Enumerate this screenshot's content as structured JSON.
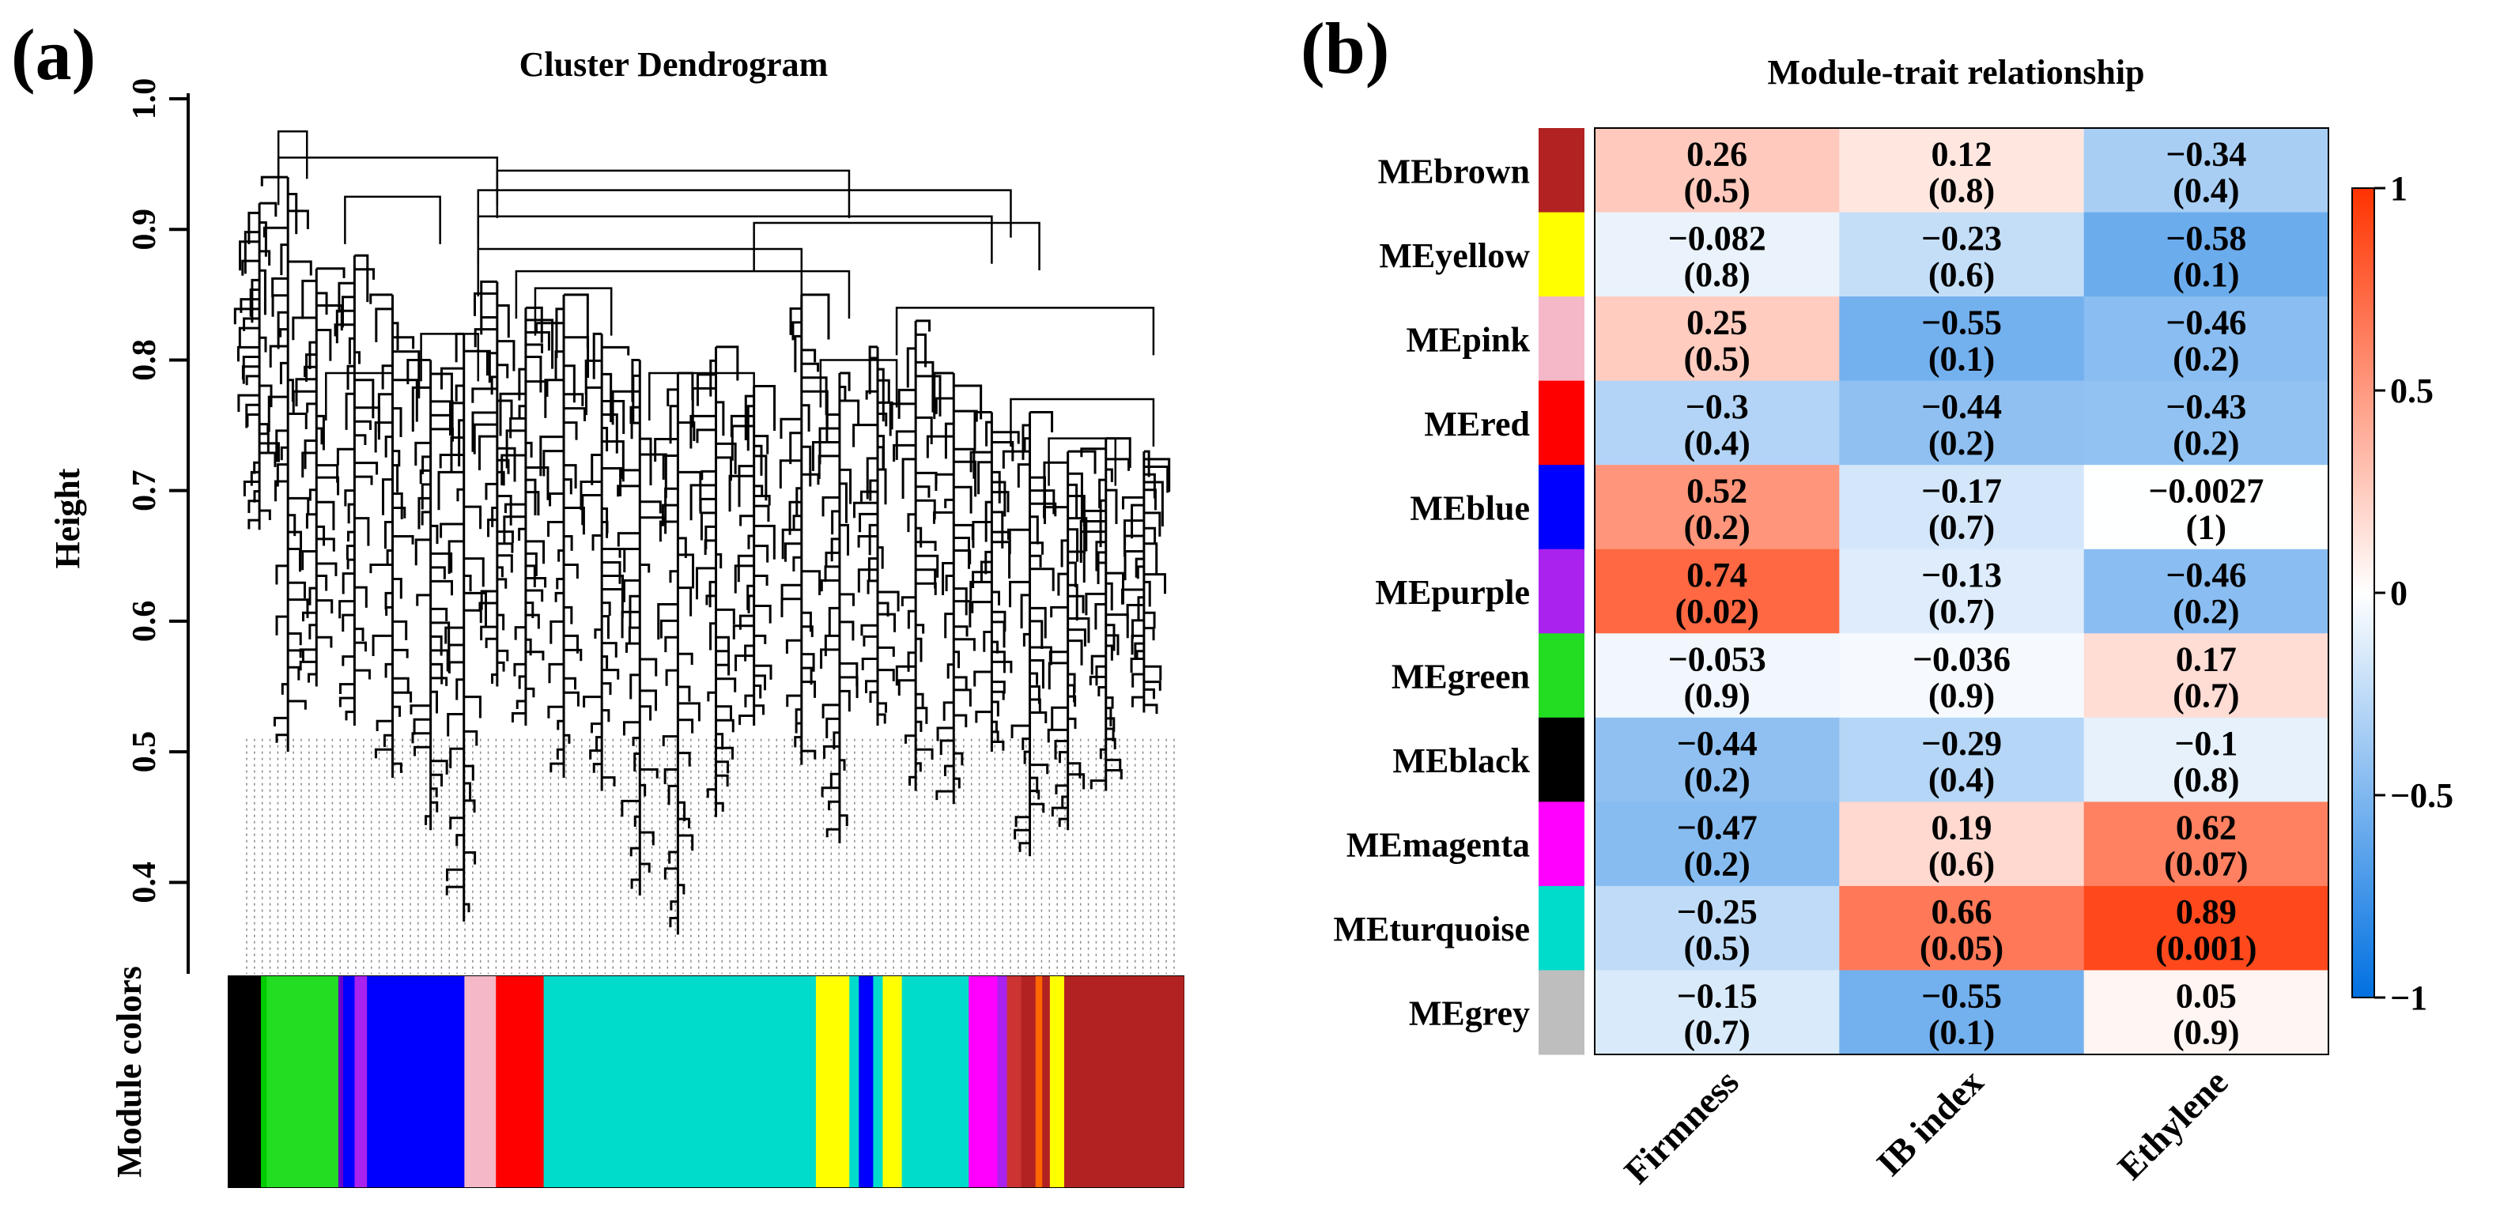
{
  "panel_a": {
    "label": "(a)",
    "chart_data": {
      "type": "dendrogram",
      "title": "Cluster Dendrogram",
      "ylabel": "Height",
      "ylim": [
        0.33,
        1.0
      ],
      "yticks": [
        "0.4",
        "0.5",
        "0.6",
        "0.7",
        "0.8",
        "0.9",
        "1.0"
      ],
      "ytick_values": [
        0.4,
        0.5,
        0.6,
        0.7,
        0.8,
        0.9,
        1.0
      ],
      "color_bar_label": "Module colors",
      "top_merges": [
        {
          "left": 0.05,
          "right": 0.08,
          "height": 0.975
        },
        {
          "left": 0.05,
          "right": 0.28,
          "height": 0.955
        },
        {
          "left": 0.28,
          "right": 0.65,
          "height": 0.945
        },
        {
          "left": 0.12,
          "right": 0.22,
          "height": 0.925
        },
        {
          "left": 0.26,
          "right": 0.82,
          "height": 0.93
        },
        {
          "left": 0.26,
          "right": 0.8,
          "height": 0.91
        },
        {
          "left": 0.55,
          "right": 0.85,
          "height": 0.905
        },
        {
          "left": 0.26,
          "right": 0.6,
          "height": 0.885
        },
        {
          "left": 0.3,
          "right": 0.65,
          "height": 0.868
        },
        {
          "left": 0.32,
          "right": 0.4,
          "height": 0.855
        },
        {
          "left": 0.7,
          "right": 0.97,
          "height": 0.84
        },
        {
          "left": 0.82,
          "right": 0.97,
          "height": 0.77
        },
        {
          "left": 0.1,
          "right": 0.17,
          "height": 0.79
        },
        {
          "left": 0.2,
          "right": 0.26,
          "height": 0.82
        },
        {
          "left": 0.44,
          "right": 0.55,
          "height": 0.79
        },
        {
          "left": 0.62,
          "right": 0.7,
          "height": 0.8
        },
        {
          "left": 0.86,
          "right": 0.93,
          "height": 0.74
        }
      ],
      "leaf_branches": [
        {
          "x": 0.03,
          "top": 0.92,
          "bottom": 0.67
        },
        {
          "x": 0.06,
          "top": 0.94,
          "bottom": 0.5
        },
        {
          "x": 0.09,
          "top": 0.87,
          "bottom": 0.55
        },
        {
          "x": 0.13,
          "top": 0.88,
          "bottom": 0.52
        },
        {
          "x": 0.17,
          "top": 0.85,
          "bottom": 0.48
        },
        {
          "x": 0.21,
          "top": 0.8,
          "bottom": 0.44
        },
        {
          "x": 0.245,
          "top": 0.82,
          "bottom": 0.37
        },
        {
          "x": 0.28,
          "top": 0.86,
          "bottom": 0.55
        },
        {
          "x": 0.31,
          "top": 0.84,
          "bottom": 0.52
        },
        {
          "x": 0.35,
          "top": 0.85,
          "bottom": 0.48
        },
        {
          "x": 0.39,
          "top": 0.82,
          "bottom": 0.47
        },
        {
          "x": 0.43,
          "top": 0.8,
          "bottom": 0.39
        },
        {
          "x": 0.47,
          "top": 0.79,
          "bottom": 0.36
        },
        {
          "x": 0.51,
          "top": 0.81,
          "bottom": 0.45
        },
        {
          "x": 0.55,
          "top": 0.78,
          "bottom": 0.52
        },
        {
          "x": 0.6,
          "top": 0.85,
          "bottom": 0.49
        },
        {
          "x": 0.64,
          "top": 0.79,
          "bottom": 0.43
        },
        {
          "x": 0.68,
          "top": 0.81,
          "bottom": 0.52
        },
        {
          "x": 0.72,
          "top": 0.83,
          "bottom": 0.47
        },
        {
          "x": 0.76,
          "top": 0.79,
          "bottom": 0.46
        },
        {
          "x": 0.8,
          "top": 0.76,
          "bottom": 0.5
        },
        {
          "x": 0.84,
          "top": 0.76,
          "bottom": 0.42
        },
        {
          "x": 0.88,
          "top": 0.73,
          "bottom": 0.44
        },
        {
          "x": 0.92,
          "top": 0.74,
          "bottom": 0.47
        },
        {
          "x": 0.96,
          "top": 0.73,
          "bottom": 0.53
        }
      ],
      "color_bar_segments": [
        {
          "color": "#000000",
          "start": 0.0,
          "end": 0.034
        },
        {
          "color": "#00cc00",
          "start": 0.034,
          "end": 0.04
        },
        {
          "color": "#22dd22",
          "start": 0.04,
          "end": 0.115
        },
        {
          "color": "#6600cc",
          "start": 0.115,
          "end": 0.12
        },
        {
          "color": "#0000ff",
          "start": 0.12,
          "end": 0.132
        },
        {
          "color": "#aa22ee",
          "start": 0.132,
          "end": 0.145
        },
        {
          "color": "#0000ff",
          "start": 0.145,
          "end": 0.247
        },
        {
          "color": "#f4b8c8",
          "start": 0.247,
          "end": 0.28
        },
        {
          "color": "#ff0000",
          "start": 0.28,
          "end": 0.33
        },
        {
          "color": "#00dccb",
          "start": 0.33,
          "end": 0.615
        },
        {
          "color": "#ffff00",
          "start": 0.615,
          "end": 0.65
        },
        {
          "color": "#00dccb",
          "start": 0.65,
          "end": 0.66
        },
        {
          "color": "#0000ff",
          "start": 0.66,
          "end": 0.675
        },
        {
          "color": "#00dccb",
          "start": 0.675,
          "end": 0.685
        },
        {
          "color": "#ffff00",
          "start": 0.685,
          "end": 0.705
        },
        {
          "color": "#00dccb",
          "start": 0.705,
          "end": 0.775
        },
        {
          "color": "#ff00ff",
          "start": 0.775,
          "end": 0.805
        },
        {
          "color": "#aa22ee",
          "start": 0.805,
          "end": 0.815
        },
        {
          "color": "#cc3333",
          "start": 0.815,
          "end": 0.83
        },
        {
          "color": "#b22222",
          "start": 0.83,
          "end": 0.845
        },
        {
          "color": "#ff6600",
          "start": 0.845,
          "end": 0.852
        },
        {
          "color": "#b22222",
          "start": 0.852,
          "end": 0.86
        },
        {
          "color": "#ffff00",
          "start": 0.86,
          "end": 0.875
        },
        {
          "color": "#b22222",
          "start": 0.875,
          "end": 1.0
        }
      ]
    }
  },
  "panel_b": {
    "label": "(b)",
    "chart_data": {
      "type": "heatmap",
      "title": "Module-trait relationship",
      "columns": [
        "Firmness",
        "IB index",
        "Ethylene"
      ],
      "rows": [
        {
          "name": "MEbrown",
          "color": "#b22222",
          "values": [
            0.26,
            0.12,
            -0.34
          ],
          "labels": [
            "0.26",
            "0.12",
            "−0.34"
          ],
          "pvalues": [
            "(0.5)",
            "(0.8)",
            "(0.4)"
          ]
        },
        {
          "name": "MEyellow",
          "color": "#ffff00",
          "values": [
            -0.082,
            -0.23,
            -0.58
          ],
          "labels": [
            "−0.082",
            "−0.23",
            "−0.58"
          ],
          "pvalues": [
            "(0.8)",
            "(0.6)",
            "(0.1)"
          ]
        },
        {
          "name": "MEpink",
          "color": "#f4b8c8",
          "values": [
            0.25,
            -0.55,
            -0.46
          ],
          "labels": [
            "0.25",
            "−0.55",
            "−0.46"
          ],
          "pvalues": [
            "(0.5)",
            "(0.1)",
            "(0.2)"
          ]
        },
        {
          "name": "MEred",
          "color": "#ff0000",
          "values": [
            -0.3,
            -0.44,
            -0.43
          ],
          "labels": [
            "−0.3",
            "−0.44",
            "−0.43"
          ],
          "pvalues": [
            "(0.4)",
            "(0.2)",
            "(0.2)"
          ]
        },
        {
          "name": "MEblue",
          "color": "#0000ff",
          "values": [
            0.52,
            -0.17,
            -0.0027
          ],
          "labels": [
            "0.52",
            "−0.17",
            "−0.0027"
          ],
          "pvalues": [
            "(0.2)",
            "(0.7)",
            "(1)"
          ]
        },
        {
          "name": "MEpurple",
          "color": "#aa22ee",
          "values": [
            0.74,
            -0.13,
            -0.46
          ],
          "labels": [
            "0.74",
            "−0.13",
            "−0.46"
          ],
          "pvalues": [
            "(0.02)",
            "(0.7)",
            "(0.2)"
          ]
        },
        {
          "name": "MEgreen",
          "color": "#22dd22",
          "values": [
            -0.053,
            -0.036,
            0.17
          ],
          "labels": [
            "−0.053",
            "−0.036",
            "0.17"
          ],
          "pvalues": [
            "(0.9)",
            "(0.9)",
            "(0.7)"
          ]
        },
        {
          "name": "MEblack",
          "color": "#000000",
          "values": [
            -0.44,
            -0.29,
            -0.1
          ],
          "labels": [
            "−0.44",
            "−0.29",
            "−0.1"
          ],
          "pvalues": [
            "(0.2)",
            "(0.4)",
            "(0.8)"
          ]
        },
        {
          "name": "MEmagenta",
          "color": "#ff00ff",
          "values": [
            -0.47,
            0.19,
            0.62
          ],
          "labels": [
            "−0.47",
            "0.19",
            "0.62"
          ],
          "pvalues": [
            "(0.2)",
            "(0.6)",
            "(0.07)"
          ]
        },
        {
          "name": "MEturquoise",
          "color": "#00dccb",
          "values": [
            -0.25,
            0.66,
            0.89
          ],
          "labels": [
            "−0.25",
            "0.66",
            "0.89"
          ],
          "pvalues": [
            "(0.5)",
            "(0.05)",
            "(0.001)"
          ]
        },
        {
          "name": "MEgrey",
          "color": "#bebebe",
          "values": [
            -0.15,
            -0.55,
            0.05
          ],
          "labels": [
            "−0.15",
            "−0.55",
            "0.05"
          ],
          "pvalues": [
            "(0.7)",
            "(0.1)",
            "(0.9)"
          ]
        }
      ],
      "legend": {
        "ticks": [
          "1",
          "0.5",
          "0",
          "−0.5",
          "−1"
        ],
        "tick_values": [
          1,
          0.5,
          0,
          -0.5,
          -1
        ],
        "colors": {
          "high": "#ff3300",
          "mid": "#ffffff",
          "low": "#0070e0"
        }
      }
    }
  }
}
